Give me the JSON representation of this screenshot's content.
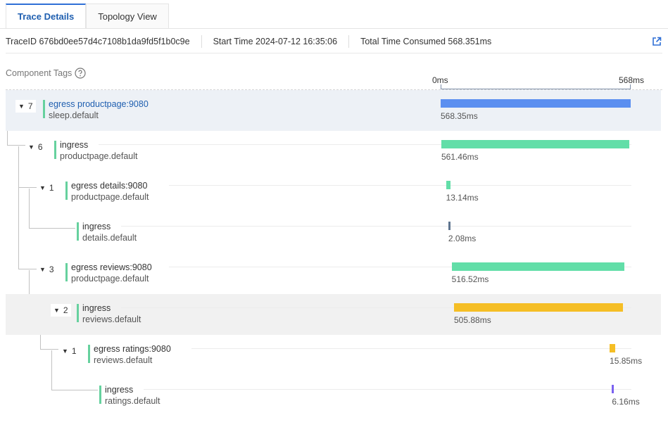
{
  "tabs": [
    {
      "label": "Trace Details",
      "active": true
    },
    {
      "label": "Topology View",
      "active": false
    }
  ],
  "info": {
    "trace_id": "TraceID 676bd0ee57d4c7108b1da9fd5f1b0c9e",
    "start_time": "Start Time 2024-07-12 16:35:06",
    "total_time": "Total Time Consumed 568.351ms",
    "external_icon": "external-link-icon"
  },
  "component_tags": {
    "label": "Component Tags",
    "icon": "help-circle-icon"
  },
  "axis": {
    "start": "0ms",
    "end": "568ms",
    "max_ms": 568
  },
  "spans": [
    {
      "count": "7",
      "name": "egress productpage:9080",
      "service": "sleep.default",
      "start_ms": 0,
      "duration_ms": 568.35,
      "duration_label": "568.35ms",
      "color": "#5b8ff0",
      "selected": true,
      "link": true
    },
    {
      "count": "6",
      "name": "ingress",
      "service": "productpage.default",
      "start_ms": 2,
      "duration_ms": 561.46,
      "duration_label": "561.46ms",
      "color": "#62dea8"
    },
    {
      "count": "1",
      "name": "egress details:9080",
      "service": "productpage.default",
      "start_ms": 16,
      "duration_ms": 13.14,
      "duration_label": "13.14ms",
      "color": "#62dea8"
    },
    {
      "count": "",
      "name": "ingress",
      "service": "details.default",
      "start_ms": 23,
      "duration_ms": 2.08,
      "duration_label": "2.08ms",
      "color": "#5f7590"
    },
    {
      "count": "3",
      "name": "egress reviews:9080",
      "service": "productpage.default",
      "start_ms": 33,
      "duration_ms": 516.52,
      "duration_label": "516.52ms",
      "color": "#62dea8"
    },
    {
      "count": "2",
      "name": "ingress",
      "service": "reviews.default",
      "start_ms": 40,
      "duration_ms": 505.88,
      "duration_label": "505.88ms",
      "color": "#f5be25",
      "hover": true
    },
    {
      "count": "1",
      "name": "egress ratings:9080",
      "service": "reviews.default",
      "start_ms": 505,
      "duration_ms": 15.85,
      "duration_label": "15.85ms",
      "color": "#f5be25"
    },
    {
      "count": "",
      "name": "ingress",
      "service": "ratings.default",
      "start_ms": 512,
      "duration_ms": 6.16,
      "duration_label": "6.16ms",
      "color": "#7b62f0"
    }
  ]
}
